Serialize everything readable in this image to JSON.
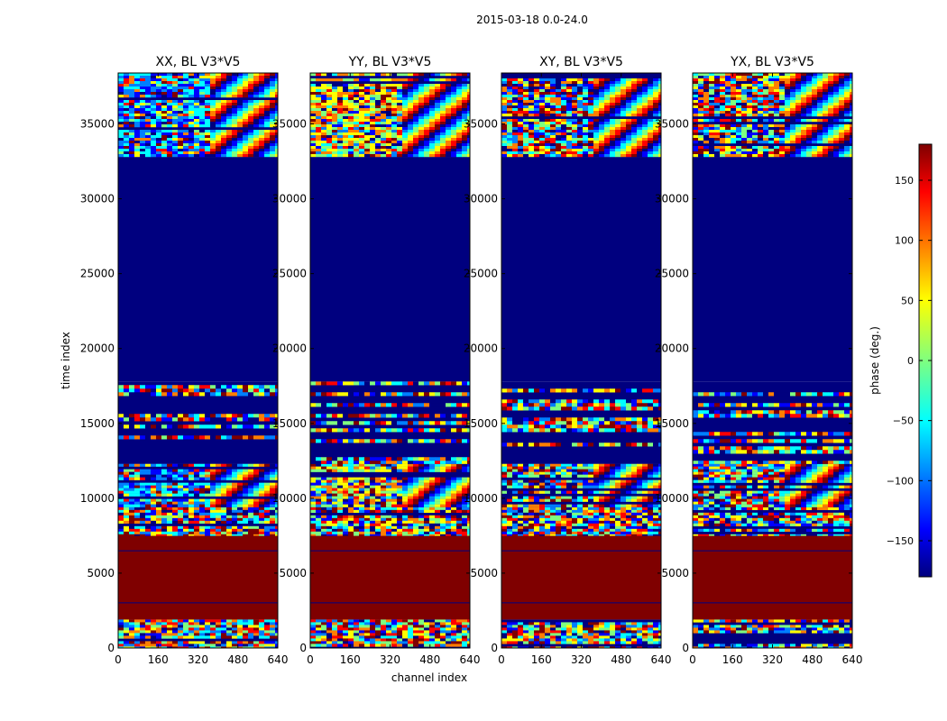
{
  "chart_data": {
    "type": "heatmap",
    "suptitle": "2015-03-18 0.0-24.0",
    "xlabel": "channel index",
    "ylabel": "time index",
    "xlim": [
      0,
      640
    ],
    "ylim": [
      0,
      38400
    ],
    "xticks": [
      0,
      160,
      320,
      480,
      640
    ],
    "yticks": [
      0,
      5000,
      10000,
      15000,
      20000,
      25000,
      30000,
      35000
    ],
    "colorbar": {
      "label": "phase (deg.)",
      "range": [
        -180,
        180
      ],
      "ticks": [
        -150,
        -100,
        -50,
        0,
        50,
        100,
        150
      ],
      "tick_labels": [
        "−150",
        "−100",
        "−50",
        "0",
        "50",
        "100",
        "150"
      ],
      "colormap": "jet",
      "colors": [
        "#00007f",
        "#0000ff",
        "#007fff",
        "#00ffff",
        "#7fff7f",
        "#ffff00",
        "#ff7f00",
        "#ff0000",
        "#7f0000"
      ]
    },
    "panels": [
      {
        "title": "XX, BL V3*V5"
      },
      {
        "title": "YY, BL V3*V5"
      },
      {
        "title": "XY, BL V3*V5"
      },
      {
        "title": "YX, BL V3*V5"
      }
    ],
    "bands": [
      {
        "y0": 0,
        "y1": 1900,
        "kind": "noise"
      },
      {
        "y0": 1900,
        "y1": 7500,
        "kind": "flag_max",
        "value": 180
      },
      {
        "y0": 7500,
        "y1": 9400,
        "kind": "noise"
      },
      {
        "y0": 9400,
        "y1": 12300,
        "kind": "fringe"
      },
      {
        "y0": 12300,
        "y1": 17800,
        "kind": "sparse"
      },
      {
        "y0": 17800,
        "y1": 32800,
        "kind": "flag_min",
        "value": -180
      },
      {
        "y0": 32800,
        "y1": 38400,
        "kind": "fringe"
      }
    ]
  }
}
